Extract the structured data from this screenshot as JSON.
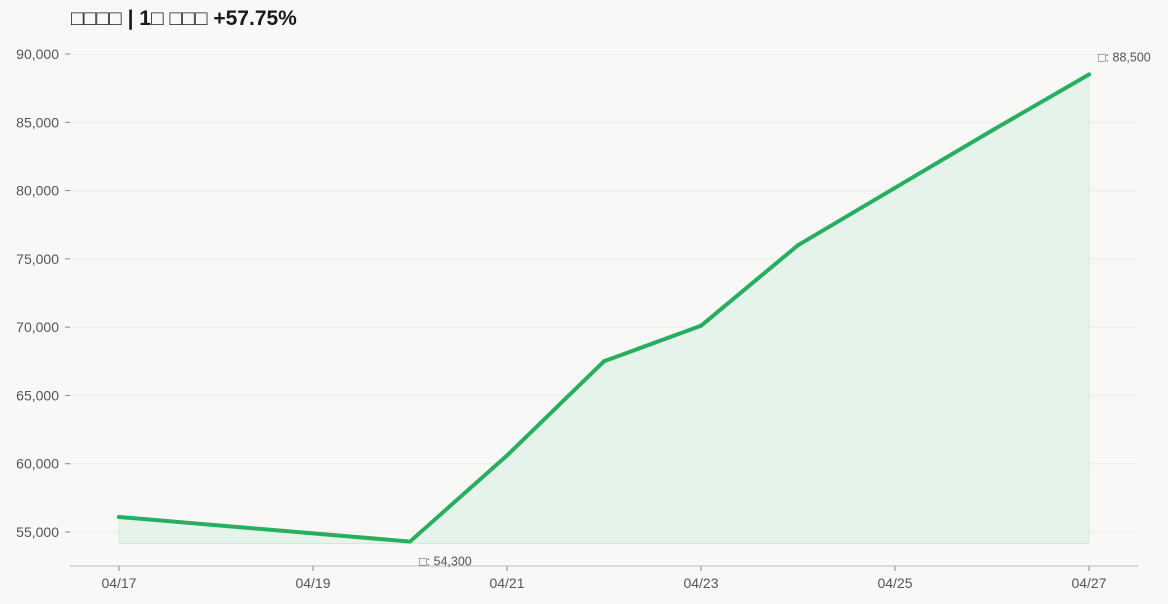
{
  "chart_data": {
    "type": "area",
    "title": "□□□□  |  1□ □□□  +57.75%",
    "xlabel": "",
    "ylabel": "",
    "x": [
      "04/17",
      "04/20",
      "04/21",
      "04/22",
      "04/23",
      "04/24",
      "04/25",
      "04/26",
      "04/27"
    ],
    "x_tick_labels": [
      "04/17",
      "04/19",
      "04/21",
      "04/23",
      "04/25",
      "04/27"
    ],
    "y_tick_labels": [
      "55,000",
      "60,000",
      "65,000",
      "70,000",
      "75,000",
      "80,000",
      "85,000",
      "90,000"
    ],
    "series": [
      {
        "values": [
          56100,
          54300,
          60600,
          67500,
          70100,
          76000,
          80200,
          84400,
          88500
        ]
      }
    ],
    "ylim": [
      53000,
      90500
    ],
    "grid": "horizontal",
    "annotations": {
      "min": {
        "text": "□: 54,300",
        "x": "04/20",
        "y": 54300
      },
      "max": {
        "text": "□: 88,500",
        "x": "04/27",
        "y": 88500
      }
    },
    "colors": {
      "line": "#27ae60",
      "fill": "#e6f3ea",
      "grid": "#ebebea",
      "axis": "#c8c8c8",
      "background": "#f8f8f7"
    }
  }
}
